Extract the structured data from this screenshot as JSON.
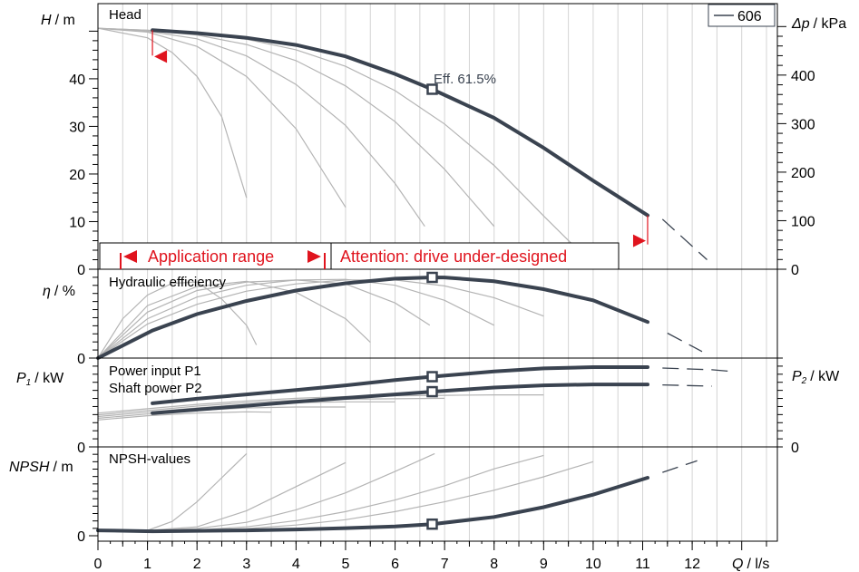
{
  "chart_data": {
    "type": "line",
    "x_axis": {
      "label_var": "Q",
      "label_unit": "/ l/s",
      "range": [
        0,
        13
      ],
      "ticks": [
        "0",
        "1",
        "2",
        "3",
        "4",
        "5",
        "6",
        "7",
        "8",
        "9",
        "10",
        "11",
        "12"
      ]
    },
    "legend": {
      "label": "606",
      "position": "top-right"
    },
    "colors": {
      "main": "#3a4350",
      "aux": "#b4b4b4",
      "red": "#e0141e"
    },
    "panels": [
      {
        "id": "head",
        "title": "Head",
        "left_axis": {
          "var": "H",
          "unit": "/ m",
          "range": [
            0,
            51.5
          ],
          "ticks": [
            "0",
            "10",
            "20",
            "30",
            "40"
          ]
        },
        "right_axis": {
          "var": "Δp",
          "unit": "/ kPa",
          "range": [
            0,
            505
          ],
          "ticks": [
            "0",
            "100",
            "200",
            "300",
            "400"
          ]
        },
        "annotation": "Eff. 61.5%",
        "duty_point": {
          "q": 6.75,
          "h": 37.8
        },
        "main_series": {
          "points": [
            [
              1.1,
              50.2
            ],
            [
              2,
              49.6
            ],
            [
              3,
              48.6
            ],
            [
              4,
              47.1
            ],
            [
              5,
              44.7
            ],
            [
              6,
              41.0
            ],
            [
              6.75,
              37.8
            ],
            [
              8,
              31.8
            ],
            [
              9,
              25.5
            ],
            [
              10,
              18.6
            ],
            [
              11.1,
              11.3
            ]
          ],
          "dashed": [
            [
              11.4,
              10.5
            ],
            [
              12.3,
              2.0
            ]
          ]
        },
        "aux_series": [
          [
            [
              0,
              50.6
            ],
            [
              1,
              48.6
            ],
            [
              1.5,
              45.5
            ],
            [
              2,
              40.5
            ],
            [
              2.5,
              32.0
            ],
            [
              3,
              15.0
            ]
          ],
          [
            [
              0,
              50.6
            ],
            [
              1,
              49.8
            ],
            [
              2,
              46.8
            ],
            [
              3,
              40.5
            ],
            [
              4,
              29.5
            ],
            [
              5,
              13.0
            ]
          ],
          [
            [
              0,
              50.6
            ],
            [
              1,
              50.0
            ],
            [
              2,
              48.4
            ],
            [
              3,
              44.8
            ],
            [
              4,
              38.8
            ],
            [
              5,
              30.2
            ],
            [
              6,
              18.0
            ],
            [
              6.6,
              9.0
            ]
          ],
          [
            [
              0,
              50.6
            ],
            [
              1,
              50.2
            ],
            [
              2,
              49.2
            ],
            [
              3,
              47.2
            ],
            [
              4,
              43.8
            ],
            [
              5,
              38.5
            ],
            [
              6,
              31.0
            ],
            [
              7,
              21.0
            ],
            [
              8,
              9.0
            ]
          ],
          [
            [
              0,
              50.6
            ],
            [
              1,
              50.2
            ],
            [
              2,
              49.6
            ],
            [
              3,
              48.3
            ],
            [
              4,
              46.1
            ],
            [
              5,
              42.6
            ],
            [
              6,
              37.5
            ],
            [
              7,
              30.5
            ],
            [
              8,
              21.8
            ],
            [
              9,
              11.2
            ],
            [
              9.6,
              5.0
            ]
          ]
        ],
        "range_note": {
          "application_range": "Application range",
          "attention": "Attention: drive under-designed"
        }
      },
      {
        "id": "eff",
        "title": "Hydraulic efficiency",
        "left_axis": {
          "var": "η",
          "unit": "/ %",
          "range": [
            0,
            66
          ],
          "ticks": [
            "0"
          ]
        },
        "duty_point": {
          "q": 6.75,
          "eta": 61.5
        },
        "main_series": {
          "points": [
            [
              0,
              0
            ],
            [
              1.1,
              21.0
            ],
            [
              2,
              33.5
            ],
            [
              3,
              43.5
            ],
            [
              4,
              51.5
            ],
            [
              5,
              57.0
            ],
            [
              6,
              60.5
            ],
            [
              6.75,
              61.5
            ],
            [
              7,
              61.4
            ],
            [
              8,
              58.5
            ],
            [
              9,
              52.5
            ],
            [
              10,
              44.0
            ],
            [
              11.1,
              27.5
            ]
          ],
          "dashed": [
            [
              11.5,
              19.0
            ],
            [
              12.2,
              5.0
            ]
          ]
        },
        "aux_series": [
          [
            [
              0,
              0
            ],
            [
              0.5,
              30.0
            ],
            [
              1,
              48.0
            ],
            [
              1.5,
              57.0
            ],
            [
              2,
              58.0
            ],
            [
              2.5,
              45.0
            ],
            [
              3,
              25.0
            ],
            [
              3.2,
              10.0
            ]
          ],
          [
            [
              0,
              0
            ],
            [
              1,
              40.0
            ],
            [
              2,
              54.5
            ],
            [
              3,
              58.5
            ],
            [
              4,
              50.0
            ],
            [
              5,
              30.0
            ],
            [
              5.5,
              12.0
            ]
          ],
          [
            [
              0,
              0
            ],
            [
              1,
              35.0
            ],
            [
              2,
              51.5
            ],
            [
              3,
              58.0
            ],
            [
              4,
              59.5
            ],
            [
              5,
              56.5
            ],
            [
              6,
              42.0
            ],
            [
              6.7,
              25.0
            ]
          ],
          [
            [
              0,
              0
            ],
            [
              1,
              30.0
            ],
            [
              2,
              46.5
            ],
            [
              3,
              55.5
            ],
            [
              4,
              59.5
            ],
            [
              5,
              60.0
            ],
            [
              6,
              55.5
            ],
            [
              7,
              44.0
            ],
            [
              8,
              25.0
            ]
          ],
          [
            [
              0,
              0
            ],
            [
              1,
              26.0
            ],
            [
              2,
              41.0
            ],
            [
              3,
              51.0
            ],
            [
              4,
              56.5
            ],
            [
              5,
              59.5
            ],
            [
              6,
              59.5
            ],
            [
              7,
              55.0
            ],
            [
              8,
              46.0
            ],
            [
              9,
              32.0
            ]
          ]
        ]
      },
      {
        "id": "power",
        "title": "Power input P1",
        "title2": "Shaft power P2",
        "left_axis": {
          "var": "P",
          "sub": "1",
          "unit": "/ kW",
          "range": [
            0,
            1
          ],
          "ticks": [
            "0"
          ]
        },
        "right_axis": {
          "var": "P",
          "sub": "2",
          "unit": "/ kW",
          "range": [
            0,
            1
          ],
          "ticks": [
            "0"
          ]
        },
        "duty_points": [
          {
            "q": 6.75,
            "p1": 0.81
          },
          {
            "q": 6.75,
            "p2": 0.637
          }
        ],
        "main_series": [
          {
            "points": [
              [
                1.1,
                0.503
              ],
              [
                2,
                0.555
              ],
              [
                3,
                0.605
              ],
              [
                4,
                0.655
              ],
              [
                5,
                0.71
              ],
              [
                6,
                0.77
              ],
              [
                6.75,
                0.81
              ],
              [
                8,
                0.87
              ],
              [
                9,
                0.905
              ],
              [
                10,
                0.92
              ],
              [
                11.1,
                0.92
              ]
            ],
            "dashed": [
              [
                11.4,
                0.91
              ],
              [
                12.4,
                0.89
              ],
              [
                12.8,
                0.87
              ]
            ]
          },
          {
            "points": [
              [
                1.1,
                0.39
              ],
              [
                2,
                0.43
              ],
              [
                3,
                0.475
              ],
              [
                4,
                0.52
              ],
              [
                5,
                0.565
              ],
              [
                6,
                0.605
              ],
              [
                6.75,
                0.637
              ],
              [
                8,
                0.685
              ],
              [
                9,
                0.71
              ],
              [
                10,
                0.72
              ],
              [
                11.1,
                0.72
              ]
            ],
            "dashed": [
              [
                11.4,
                0.715
              ],
              [
                12.4,
                0.7
              ]
            ]
          }
        ],
        "aux_series": [
          [
            [
              0,
              0.31
            ],
            [
              1,
              0.36
            ],
            [
              2,
              0.39
            ],
            [
              3,
              0.405
            ],
            [
              3.5,
              0.4
            ]
          ],
          [
            [
              0,
              0.33
            ],
            [
              1,
              0.38
            ],
            [
              2,
              0.42
            ],
            [
              3,
              0.45
            ],
            [
              4,
              0.46
            ],
            [
              5,
              0.46
            ]
          ],
          [
            [
              0,
              0.35
            ],
            [
              1,
              0.4
            ],
            [
              2,
              0.45
            ],
            [
              3,
              0.49
            ],
            [
              4,
              0.51
            ],
            [
              5,
              0.52
            ],
            [
              6,
              0.52
            ]
          ],
          [
            [
              0,
              0.37
            ],
            [
              1,
              0.42
            ],
            [
              2,
              0.47
            ],
            [
              3,
              0.51
            ],
            [
              4,
              0.54
            ],
            [
              5,
              0.55
            ],
            [
              6,
              0.555
            ],
            [
              7,
              0.56
            ]
          ],
          [
            [
              0,
              0.39
            ],
            [
              1,
              0.44
            ],
            [
              2,
              0.49
            ],
            [
              3,
              0.53
            ],
            [
              4,
              0.56
            ],
            [
              5,
              0.58
            ],
            [
              6,
              0.59
            ],
            [
              7,
              0.595
            ],
            [
              8,
              0.6
            ],
            [
              9,
              0.6
            ]
          ]
        ]
      },
      {
        "id": "npsh",
        "title": "NPSH-values",
        "left_axis": {
          "var": "NPSH",
          "unit": "/ m",
          "range": [
            0,
            10.2
          ],
          "ticks": [
            "0"
          ]
        },
        "duty_point": {
          "q": 6.75,
          "npsh": 1.3
        },
        "main_series": {
          "points": [
            [
              0,
              0.6
            ],
            [
              1.1,
              0.5
            ],
            [
              2,
              0.55
            ],
            [
              3,
              0.6
            ],
            [
              4,
              0.7
            ],
            [
              5,
              0.85
            ],
            [
              6,
              1.05
            ],
            [
              6.75,
              1.3
            ],
            [
              8,
              2.1
            ],
            [
              9,
              3.2
            ],
            [
              10,
              4.6
            ],
            [
              11.1,
              6.5
            ]
          ],
          "dashed": [
            [
              11.4,
              7.1
            ],
            [
              12.1,
              8.4
            ]
          ]
        },
        "aux_series": [
          [
            [
              0,
              0.6
            ],
            [
              1,
              0.6
            ],
            [
              1.5,
              1.6
            ],
            [
              2,
              3.8
            ],
            [
              2.5,
              6.5
            ],
            [
              3,
              9.2
            ]
          ],
          [
            [
              0,
              0.6
            ],
            [
              1,
              0.6
            ],
            [
              2,
              1.0
            ],
            [
              3,
              2.8
            ],
            [
              4,
              5.5
            ],
            [
              5,
              8.2
            ]
          ],
          [
            [
              0,
              0.6
            ],
            [
              1,
              0.6
            ],
            [
              2,
              0.8
            ],
            [
              3,
              1.5
            ],
            [
              4,
              2.9
            ],
            [
              5,
              4.8
            ],
            [
              6,
              7.2
            ],
            [
              6.8,
              9.2
            ]
          ],
          [
            [
              0,
              0.6
            ],
            [
              1,
              0.55
            ],
            [
              2,
              0.65
            ],
            [
              3,
              1.0
            ],
            [
              4,
              1.7
            ],
            [
              5,
              2.7
            ],
            [
              6,
              4.0
            ],
            [
              7,
              5.6
            ],
            [
              8,
              7.5
            ],
            [
              9,
              9.0
            ]
          ],
          [
            [
              0,
              0.6
            ],
            [
              1,
              0.5
            ],
            [
              2,
              0.6
            ],
            [
              3,
              0.8
            ],
            [
              4,
              1.2
            ],
            [
              5,
              1.8
            ],
            [
              6,
              2.7
            ],
            [
              7,
              3.8
            ],
            [
              8,
              5.1
            ],
            [
              9,
              6.6
            ],
            [
              10,
              8.3
            ]
          ]
        ]
      }
    ]
  }
}
